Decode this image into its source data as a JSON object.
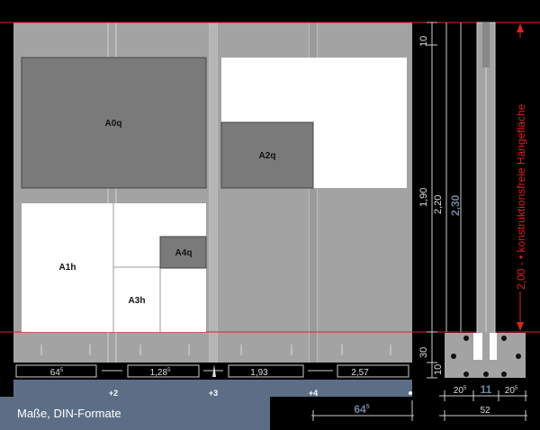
{
  "caption": "Maße, DIN-Formate",
  "formats": {
    "a0q": "A0q",
    "a2q": "A2q",
    "a1h": "A1h",
    "a3h": "A3h",
    "a4q": "A4q"
  },
  "widths": {
    "w1": "64",
    "w1_sup": "5",
    "w2": "1,28",
    "w2_sup": "5",
    "w3": "1,93",
    "w4": "2,57",
    "w5": "64",
    "w5_sup": "5"
  },
  "markers": [
    "+2",
    "+3",
    "+4"
  ],
  "heights": {
    "h_top": "10",
    "h_main": "1,90",
    "h_bottom": "30",
    "h_foot": "10",
    "h_220": "2,20",
    "h_230": "2,30"
  },
  "red_label": "2,00 - • konstruktionsfreie Hängefläche",
  "profile": {
    "p1": "20",
    "p1_sup": "5",
    "p2": "11",
    "p3": "20",
    "p3_sup": "5",
    "total": "52"
  },
  "colors": {
    "wall": "#a3a3a3",
    "panel_dark": "#7a7a7a",
    "panel_light": "#ffffff",
    "caption_bg": "#5b6e86",
    "blue_text": "#6f86a2",
    "red_line": "#e02020"
  }
}
